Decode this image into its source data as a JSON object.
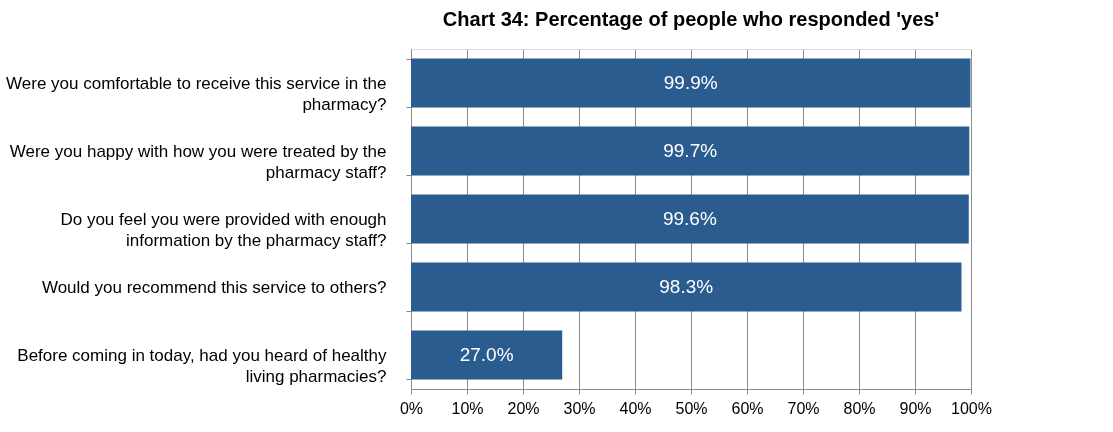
{
  "chart_data": {
    "type": "bar",
    "orientation": "horizontal",
    "title": "Chart 34: Percentage of people who responded 'yes'",
    "categories": [
      "Were you comfortable to receive this service in the pharmacy?",
      "Were you happy with how you were treated by the pharmacy staff?",
      "Do you feel you were provided with enough information by the pharmacy staff?",
      "Would you recommend this service to others?",
      "Before coming in today, had you heard of healthy living pharmacies?"
    ],
    "values": [
      99.9,
      99.7,
      99.6,
      98.3,
      27.0
    ],
    "value_labels": [
      "99.9%",
      "99.7%",
      "99.6%",
      "98.3%",
      "27.0%"
    ],
    "color": "#2b5c8f",
    "xlim": [
      0,
      100
    ],
    "xticks": [
      {
        "value": 0,
        "label": "0%"
      },
      {
        "value": 10,
        "label": "10%"
      },
      {
        "value": 20,
        "label": "20%"
      },
      {
        "value": 30,
        "label": "30%"
      },
      {
        "value": 40,
        "label": "40%"
      },
      {
        "value": 50,
        "label": "50%"
      },
      {
        "value": 60,
        "label": "60%"
      },
      {
        "value": 70,
        "label": "70%"
      },
      {
        "value": 80,
        "label": "80%"
      },
      {
        "value": 90,
        "label": "90%"
      },
      {
        "value": 100,
        "label": "100%"
      }
    ],
    "grid": "x"
  }
}
